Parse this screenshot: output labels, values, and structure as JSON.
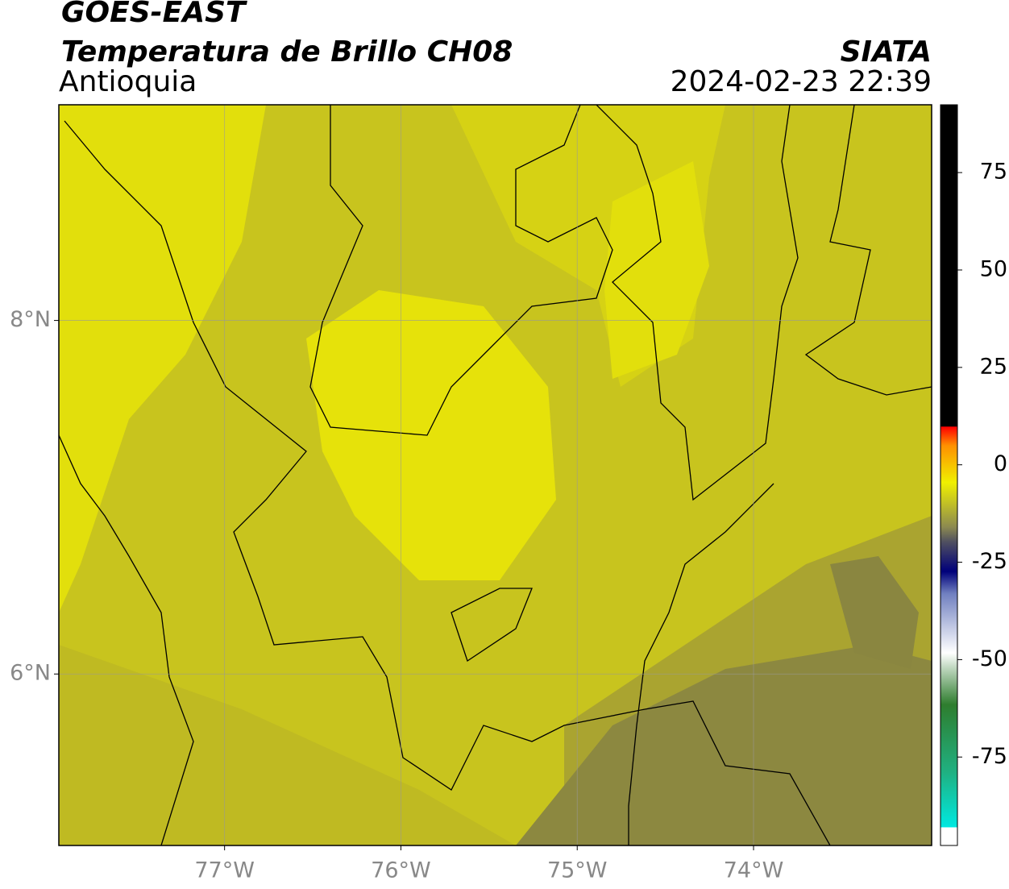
{
  "header": {
    "title": "GOES-EAST",
    "subtitle": "Temperatura de Brillo CH08",
    "region": "Antioquia",
    "source": "SIATA",
    "datetime": "2024-02-23 22:39"
  },
  "map": {
    "xlim": [
      -77.94,
      -72.99
    ],
    "ylim": [
      5.03,
      9.22
    ],
    "xticks": [
      {
        "value": -77,
        "label": "77°W"
      },
      {
        "value": -76,
        "label": "76°W"
      },
      {
        "value": -75,
        "label": "75°W"
      },
      {
        "value": -74,
        "label": "74°W"
      }
    ],
    "yticks": [
      {
        "value": 8,
        "label": "8°N"
      },
      {
        "value": 6,
        "label": "6°N"
      }
    ],
    "grid": true
  },
  "colorbar": {
    "lim": [
      -97.7,
      92.4
    ],
    "ticks": [
      75,
      50,
      25,
      0,
      -25,
      -50,
      -75
    ]
  }
}
